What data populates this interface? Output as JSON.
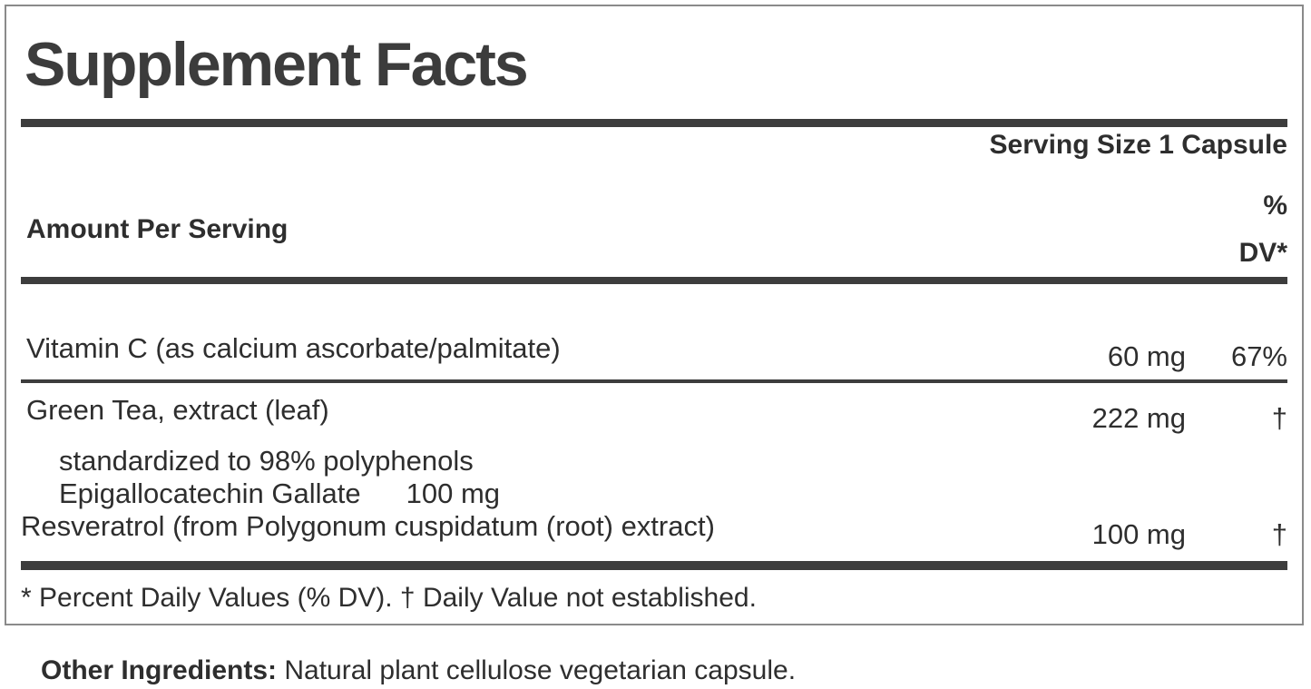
{
  "colors": {
    "text": "#2e2e2e",
    "title": "#3c3c3c",
    "rule": "#3d3d3d",
    "border": "#8a8a8a",
    "background": "#ffffff"
  },
  "label": {
    "title": "Supplement Facts",
    "serving_size": "Serving Size 1 Capsule",
    "columns": {
      "amount_header": "Amount Per Serving",
      "percent": "%",
      "dv": "DV*"
    },
    "rows": [
      {
        "name": "Vitamin C (as calcium ascorbate/palmitate)",
        "amount": "60 mg",
        "dv": "67%"
      },
      {
        "name": "Green Tea, extract (leaf)",
        "amount": "222 mg",
        "dv": "†"
      },
      {
        "name": "standardized to 98% polyphenols",
        "amount": "",
        "dv": ""
      },
      {
        "name": "Epigallocatechin Gallate",
        "amount": "100 mg",
        "dv": ""
      },
      {
        "name": "Resveratrol (from Polygonum cuspidatum (root) extract)",
        "amount": "100 mg",
        "dv": "†"
      }
    ],
    "footnote": "* Percent Daily Values (% DV). † Daily Value not established.",
    "other_ingredients": {
      "label": "Other Ingredients:",
      "text": "Natural plant cellulose vegetarian capsule."
    }
  }
}
